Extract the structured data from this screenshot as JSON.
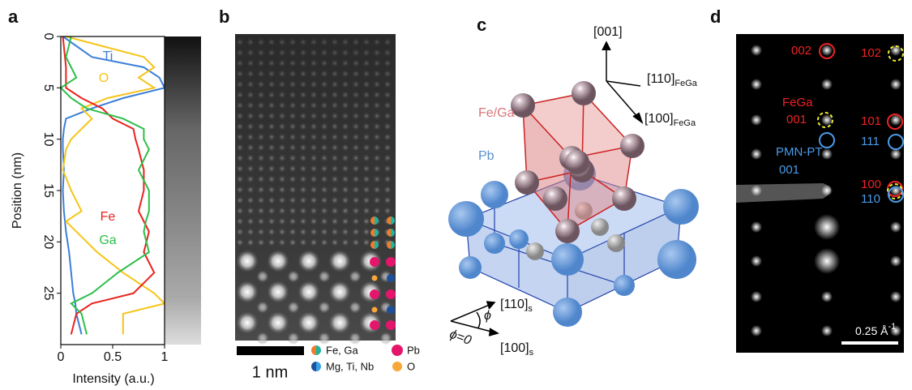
{
  "panel_labels": [
    "a",
    "b",
    "c",
    "d"
  ],
  "chart_data": {
    "type": "line",
    "xlabel": "Intensity (a.u.)",
    "ylabel": "Position (nm)",
    "y": [
      0,
      2,
      3,
      4,
      5,
      6,
      7,
      8,
      9,
      10,
      11,
      13,
      15,
      17,
      18,
      19,
      21,
      23,
      25,
      26,
      27,
      29
    ],
    "series": [
      {
        "name": "Ti",
        "color": "#3a7fd9",
        "values": [
          0.02,
          0.3,
          0.8,
          0.95,
          1.0,
          0.6,
          0.3,
          0.05,
          0.03,
          0.02,
          0.02,
          0.03,
          0.02,
          0.03,
          0.04,
          0.05,
          0.08,
          0.1,
          0.12,
          0.14,
          0.15,
          0.2
        ]
      },
      {
        "name": "O",
        "color": "#f5c518",
        "values": [
          0.05,
          0.8,
          0.9,
          0.75,
          0.9,
          0.45,
          0.2,
          0.3,
          0.2,
          0.1,
          0.05,
          0.02,
          0.1,
          0.2,
          0.05,
          0.15,
          0.35,
          0.6,
          0.9,
          1.0,
          0.6,
          0.6
        ]
      },
      {
        "name": "Fe",
        "color": "#e8221f",
        "values": [
          0.02,
          0.04,
          0.05,
          0.05,
          0.05,
          0.2,
          0.4,
          0.5,
          0.7,
          0.72,
          0.75,
          0.8,
          0.8,
          0.75,
          0.8,
          0.85,
          0.8,
          0.9,
          0.7,
          0.3,
          0.15,
          0.1
        ]
      },
      {
        "name": "Ga",
        "color": "#2dbf4a",
        "values": [
          0.1,
          0.05,
          0.1,
          0.15,
          0.0,
          0.1,
          0.25,
          0.6,
          0.8,
          0.8,
          0.85,
          0.75,
          0.85,
          0.85,
          0.82,
          0.8,
          0.85,
          0.55,
          0.3,
          0.1,
          0.2,
          0.25
        ]
      }
    ],
    "xlim": [
      0,
      1
    ],
    "xticks": [
      0,
      0.5,
      1
    ],
    "ylim": [
      0,
      30
    ],
    "yticks": [
      0,
      5,
      10,
      15,
      20,
      25
    ],
    "y_inverted": true
  },
  "panel_b": {
    "scale_bar": "1 nm",
    "legend": [
      "Fe, Ga",
      "Pb",
      "Mg, Ti, Nb",
      "O"
    ]
  },
  "panel_c": {
    "labels": [
      "Fe/Ga",
      "Pb"
    ],
    "directions": [
      {
        "text": "[001]"
      },
      {
        "text": "[110]",
        "sub": "FeGa"
      },
      {
        "text": "[100]",
        "sub": "FeGa"
      },
      {
        "text": "[110]",
        "sub": "s"
      },
      {
        "text": "[100]",
        "sub": "s"
      }
    ],
    "angles": [
      "ϕ",
      "ϕ=0"
    ]
  },
  "panel_d": {
    "reflections": [
      "002",
      "102",
      "FeGa",
      "001",
      "101",
      "PMN-PT",
      "001",
      "111",
      "100",
      "110"
    ],
    "scale_bar": {
      "text": "0.25 Å",
      "sup": "-1"
    }
  }
}
